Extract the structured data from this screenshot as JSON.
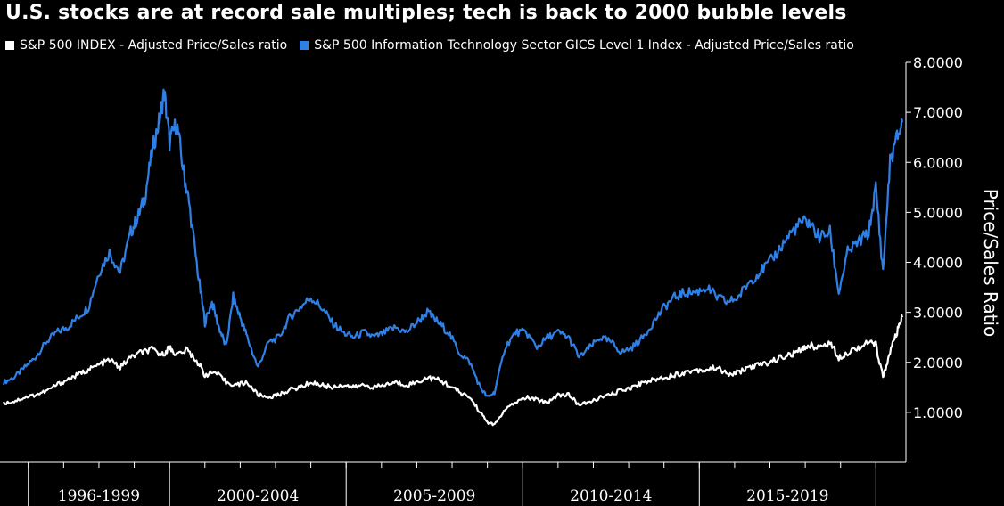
{
  "chart_data": {
    "type": "line",
    "title": "U.S. stocks are at record sale multiples; tech is back to 2000 bubble levels",
    "ylabel": "Price/Sales Ratio",
    "ylim": [
      0,
      8
    ],
    "ytick_labels": [
      "1.0000",
      "2.0000",
      "3.0000",
      "4.0000",
      "5.0000",
      "6.0000",
      "7.0000",
      "8.0000"
    ],
    "ytick_values": [
      1,
      2,
      3,
      4,
      5,
      6,
      7,
      8
    ],
    "x_period_labels": [
      "1996-1999",
      "2000-2004",
      "2005-2009",
      "2010-2014",
      "2015-2019"
    ],
    "x_period_boundaries": [
      1996.0,
      2000.0,
      2005.0,
      2010.0,
      2015.0,
      2020.0
    ],
    "xlim": [
      1995.3,
      2020.85
    ],
    "grid": false,
    "legend_position": "top-left",
    "series": [
      {
        "name": "S&P 500 INDEX - Adjusted Price/Sales ratio",
        "color": "#ffffff",
        "x": [
          1995.3,
          1995.6,
          1995.9,
          1996.2,
          1996.5,
          1996.8,
          1997.1,
          1997.4,
          1997.7,
          1998.0,
          1998.3,
          1998.6,
          1998.9,
          1999.2,
          1999.5,
          1999.8,
          2000.0,
          2000.2,
          2000.5,
          2000.8,
          2001.0,
          2001.3,
          2001.6,
          2001.9,
          2002.2,
          2002.5,
          2002.8,
          2003.1,
          2003.4,
          2003.7,
          2004.0,
          2004.3,
          2004.6,
          2004.9,
          2005.2,
          2005.5,
          2005.8,
          2006.1,
          2006.4,
          2006.7,
          2007.0,
          2007.3,
          2007.6,
          2007.9,
          2008.2,
          2008.5,
          2008.8,
          2009.0,
          2009.2,
          2009.5,
          2009.8,
          2010.1,
          2010.4,
          2010.7,
          2011.0,
          2011.3,
          2011.6,
          2011.9,
          2012.2,
          2012.5,
          2012.8,
          2013.1,
          2013.4,
          2013.7,
          2014.0,
          2014.3,
          2014.6,
          2014.9,
          2015.2,
          2015.5,
          2015.8,
          2016.1,
          2016.4,
          2016.7,
          2017.0,
          2017.3,
          2017.6,
          2017.9,
          2018.1,
          2018.4,
          2018.7,
          2018.95,
          2019.2,
          2019.5,
          2019.8,
          2020.0,
          2020.2,
          2020.4,
          2020.6,
          2020.75
        ],
        "values": [
          1.18,
          1.22,
          1.3,
          1.35,
          1.42,
          1.55,
          1.65,
          1.75,
          1.85,
          1.95,
          2.05,
          1.9,
          2.1,
          2.2,
          2.25,
          2.15,
          2.3,
          2.15,
          2.25,
          2.0,
          1.75,
          1.8,
          1.6,
          1.55,
          1.6,
          1.35,
          1.3,
          1.35,
          1.45,
          1.5,
          1.6,
          1.55,
          1.5,
          1.55,
          1.5,
          1.55,
          1.5,
          1.55,
          1.6,
          1.55,
          1.6,
          1.7,
          1.65,
          1.55,
          1.4,
          1.3,
          1.0,
          0.8,
          0.75,
          1.05,
          1.2,
          1.3,
          1.25,
          1.2,
          1.35,
          1.35,
          1.15,
          1.2,
          1.3,
          1.35,
          1.45,
          1.5,
          1.6,
          1.65,
          1.7,
          1.75,
          1.8,
          1.85,
          1.85,
          1.9,
          1.75,
          1.8,
          1.9,
          1.95,
          2.0,
          2.1,
          2.15,
          2.25,
          2.35,
          2.3,
          2.4,
          2.1,
          2.2,
          2.3,
          2.4,
          2.35,
          1.7,
          2.2,
          2.6,
          2.9
        ]
      },
      {
        "name": "S&P 500 Information Technology Sector GICS Level 1 Index - Adjusted Price/Sales ratio",
        "color": "#2f80e6",
        "x": [
          1995.3,
          1995.6,
          1995.9,
          1996.2,
          1996.5,
          1996.8,
          1997.1,
          1997.4,
          1997.7,
          1998.0,
          1998.3,
          1998.6,
          1998.9,
          1999.1,
          1999.3,
          1999.5,
          1999.7,
          1999.85,
          2000.0,
          2000.2,
          2000.4,
          2000.55,
          2000.8,
          2001.0,
          2001.2,
          2001.4,
          2001.6,
          2001.8,
          2002.0,
          2002.2,
          2002.5,
          2002.8,
          2003.1,
          2003.4,
          2003.7,
          2004.0,
          2004.3,
          2004.6,
          2004.9,
          2005.2,
          2005.5,
          2005.8,
          2006.1,
          2006.4,
          2006.7,
          2007.0,
          2007.3,
          2007.6,
          2007.9,
          2008.2,
          2008.5,
          2008.8,
          2009.0,
          2009.2,
          2009.5,
          2009.8,
          2010.1,
          2010.4,
          2010.7,
          2011.0,
          2011.3,
          2011.6,
          2011.9,
          2012.2,
          2012.5,
          2012.8,
          2013.1,
          2013.4,
          2013.7,
          2014.0,
          2014.3,
          2014.6,
          2014.9,
          2015.2,
          2015.5,
          2015.8,
          2016.1,
          2016.4,
          2016.7,
          2017.0,
          2017.3,
          2017.6,
          2017.9,
          2018.1,
          2018.4,
          2018.7,
          2018.95,
          2019.2,
          2019.5,
          2019.8,
          2020.0,
          2020.2,
          2020.4,
          2020.6,
          2020.75
        ],
        "values": [
          1.6,
          1.7,
          1.9,
          2.1,
          2.4,
          2.6,
          2.7,
          2.9,
          3.1,
          3.8,
          4.2,
          3.8,
          4.6,
          4.9,
          5.3,
          6.2,
          6.8,
          7.4,
          6.4,
          6.8,
          5.8,
          5.2,
          3.8,
          2.8,
          3.2,
          2.7,
          2.3,
          3.3,
          2.9,
          2.5,
          1.9,
          2.4,
          2.5,
          2.9,
          3.1,
          3.3,
          3.1,
          2.8,
          2.6,
          2.5,
          2.6,
          2.5,
          2.6,
          2.7,
          2.6,
          2.8,
          3.0,
          2.8,
          2.6,
          2.2,
          2.0,
          1.5,
          1.3,
          1.4,
          2.3,
          2.6,
          2.6,
          2.3,
          2.5,
          2.6,
          2.5,
          2.1,
          2.3,
          2.5,
          2.4,
          2.2,
          2.3,
          2.5,
          2.8,
          3.1,
          3.3,
          3.4,
          3.4,
          3.5,
          3.3,
          3.2,
          3.3,
          3.6,
          3.8,
          4.0,
          4.3,
          4.6,
          4.8,
          4.8,
          4.5,
          4.6,
          3.4,
          4.2,
          4.4,
          4.6,
          5.5,
          3.8,
          6.0,
          6.5,
          6.8
        ]
      }
    ]
  }
}
